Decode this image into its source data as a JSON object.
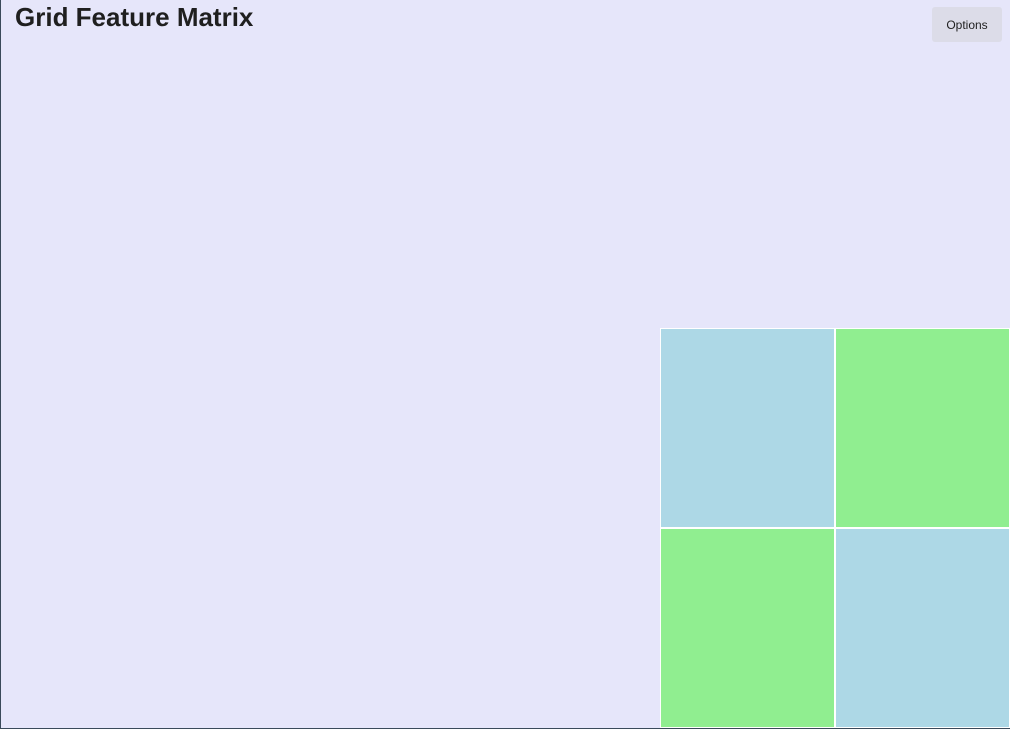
{
  "window": {
    "title": "Grid Feature Matrix"
  },
  "toolbar": {
    "options_label": "Options"
  },
  "grid": {
    "colors": {
      "blue": "#add8e6",
      "green": "#90ee90",
      "background": "#e6e6fa"
    },
    "cells": [
      {
        "color": "#add8e6"
      },
      {
        "color": "#90ee90"
      },
      {
        "color": "#90ee90"
      },
      {
        "color": "#add8e6"
      }
    ]
  }
}
